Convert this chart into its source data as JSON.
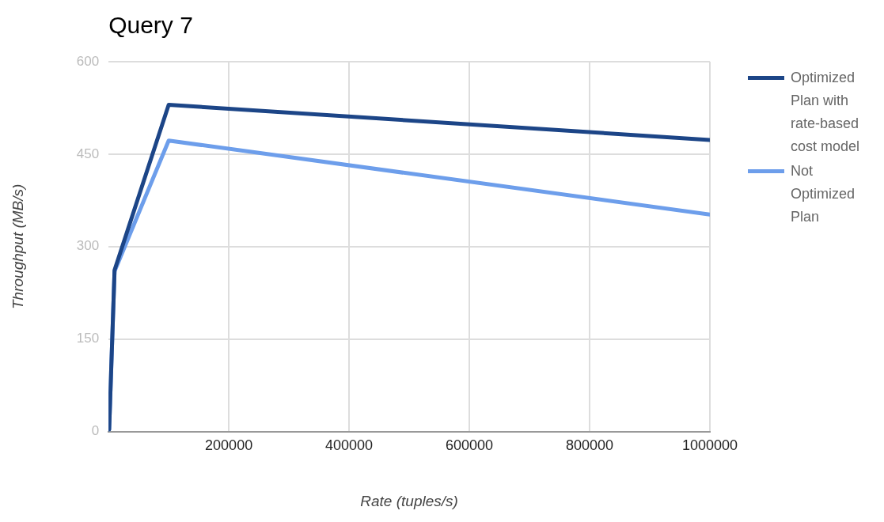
{
  "chart_data": {
    "type": "line",
    "title": "Query 7",
    "xlabel": "Rate (tuples/s)",
    "ylabel": "Throughput (MB/s)",
    "x": [
      1000,
      10000,
      100000,
      1000000
    ],
    "series": [
      {
        "name": "Optimized Plan with rate-based cost model",
        "color": "#1c4587",
        "values": [
          3,
          262,
          530,
          473
        ]
      },
      {
        "name": "Not Optimized Plan",
        "color": "#6d9eeb",
        "values": [
          3,
          260,
          472,
          352
        ]
      }
    ],
    "xlim": [
      0,
      1000000
    ],
    "xticks": [
      200000,
      400000,
      600000,
      800000,
      1000000
    ],
    "ylim": [
      0,
      600
    ],
    "yticks": [
      0,
      150,
      300,
      450,
      600
    ],
    "grid": true,
    "legend": "right",
    "marker": "none",
    "line_style": "solid"
  }
}
